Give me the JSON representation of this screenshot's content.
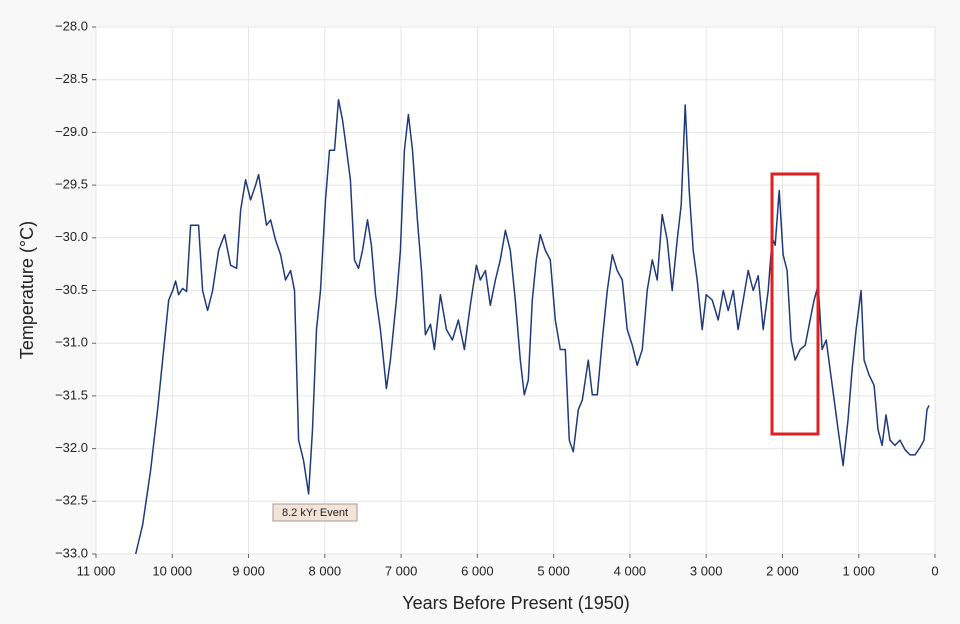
{
  "chart_data": {
    "type": "line",
    "x_label": "Years Before Present (1950)",
    "y_label": "Temperature (°C)",
    "annotation": "8.2 kYr Event",
    "color": "#1f3a7a",
    "grid": true,
    "xlim": [
      11000,
      0
    ],
    "ylim": [
      -33,
      -28
    ],
    "xticks": [
      {
        "value": 11000,
        "label": "11 000"
      },
      {
        "value": 10000,
        "label": "10 000"
      },
      {
        "value": 9000,
        "label": "9 000"
      },
      {
        "value": 8000,
        "label": "8 000"
      },
      {
        "value": 7000,
        "label": "7 000"
      },
      {
        "value": 6000,
        "label": "6 000"
      },
      {
        "value": 5000,
        "label": "5 000"
      },
      {
        "value": 4000,
        "label": "4 000"
      },
      {
        "value": 3000,
        "label": "3 000"
      },
      {
        "value": 2000,
        "label": "2 000"
      },
      {
        "value": 1000,
        "label": "1 000"
      },
      0
    ],
    "yticks": [
      {
        "value": -28,
        "label": "−28.0"
      },
      {
        "value": -28.5,
        "label": "−28.5"
      },
      {
        "value": -29,
        "label": "−29.0"
      },
      {
        "value": -29.5,
        "label": "−29.5"
      },
      {
        "value": -30,
        "label": "−30.0"
      },
      {
        "value": -30.5,
        "label": "−30.5"
      },
      {
        "value": -31,
        "label": "−31.0"
      },
      {
        "value": -31.5,
        "label": "−31.5"
      },
      {
        "value": -32,
        "label": "−32.0"
      },
      {
        "value": -32.5,
        "label": "−32.5"
      },
      {
        "value": -33,
        "label": "−33.0"
      }
    ],
    "x": [
      10480,
      10388,
      10283,
      10192,
      10113,
      10047,
      9995,
      9956,
      9917,
      9864,
      9812,
      9760,
      9707,
      9655,
      9602,
      9537,
      9471,
      9393,
      9314,
      9235,
      9157,
      9104,
      9039,
      8973,
      8908,
      8868,
      8816,
      8764,
      8711,
      8646,
      8580,
      8515,
      8449,
      8397,
      8344,
      8279,
      8213,
      8161,
      8109,
      8056,
      7991,
      7938,
      7873,
      7820,
      7768,
      7715,
      7664,
      7611,
      7559,
      7506,
      7441,
      7389,
      7336,
      7271,
      7192,
      7140,
      7061,
      7009,
      6956,
      6904,
      6851,
      6786,
      6733,
      6681,
      6615,
      6563,
      6484,
      6406,
      6327,
      6249,
      6170,
      6092,
      6013,
      5961,
      5895,
      5830,
      5764,
      5699,
      5633,
      5568,
      5502,
      5437,
      5384,
      5332,
      5280,
      5227,
      5175,
      5109,
      5044,
      4978,
      4913,
      4847,
      4795,
      4742,
      4677,
      4624,
      4546,
      4493,
      4428,
      4362,
      4297,
      4231,
      4166,
      4100,
      4035,
      3969,
      3904,
      3838,
      3773,
      3707,
      3642,
      3576,
      3511,
      3445,
      3380,
      3327,
      3275,
      3222,
      3170,
      3118,
      3052,
      3000,
      2921,
      2842,
      2776,
      2711,
      2645,
      2581,
      2515,
      2449,
      2384,
      2318,
      2253,
      2187,
      2135,
      2095,
      2043,
      1991,
      1939,
      1886,
      1834,
      1768,
      1702,
      1637,
      1585,
      1532,
      1480,
      1427,
      1375,
      1322,
      1270,
      1205,
      1140,
      1087,
      1035,
      969,
      930,
      865,
      799,
      747,
      694,
      642,
      590,
      524,
      459,
      393,
      327,
      262,
      196,
      144,
      105,
      79
    ],
    "values": [
      -33.0,
      -32.72,
      -32.2,
      -31.63,
      -31.06,
      -30.59,
      -30.5,
      -30.41,
      -30.54,
      -30.48,
      -30.51,
      -29.88,
      -29.88,
      -29.88,
      -30.5,
      -30.69,
      -30.5,
      -30.12,
      -29.97,
      -30.26,
      -30.29,
      -29.74,
      -29.45,
      -29.64,
      -29.5,
      -29.4,
      -29.64,
      -29.88,
      -29.83,
      -30.02,
      -30.16,
      -30.4,
      -30.31,
      -30.5,
      -31.92,
      -32.11,
      -32.43,
      -31.82,
      -30.87,
      -30.5,
      -29.64,
      -29.17,
      -29.17,
      -28.69,
      -28.88,
      -29.17,
      -29.45,
      -30.21,
      -30.29,
      -30.12,
      -29.83,
      -30.07,
      -30.54,
      -30.87,
      -31.43,
      -31.16,
      -30.59,
      -30.12,
      -29.17,
      -28.83,
      -29.17,
      -29.83,
      -30.31,
      -30.92,
      -30.82,
      -31.06,
      -30.54,
      -30.87,
      -30.97,
      -30.78,
      -31.06,
      -30.64,
      -30.26,
      -30.4,
      -30.31,
      -30.64,
      -30.4,
      -30.21,
      -29.93,
      -30.12,
      -30.59,
      -31.16,
      -31.49,
      -31.35,
      -30.59,
      -30.21,
      -29.97,
      -30.12,
      -30.21,
      -30.78,
      -31.06,
      -31.06,
      -31.92,
      -32.03,
      -31.63,
      -31.54,
      -31.16,
      -31.49,
      -31.49,
      -30.97,
      -30.5,
      -30.16,
      -30.31,
      -30.4,
      -30.87,
      -31.02,
      -31.21,
      -31.06,
      -30.5,
      -30.21,
      -30.4,
      -29.78,
      -30.02,
      -30.5,
      -30.02,
      -29.69,
      -28.74,
      -29.55,
      -30.12,
      -30.4,
      -30.87,
      -30.54,
      -30.59,
      -30.78,
      -30.5,
      -30.69,
      -30.5,
      -30.87,
      -30.59,
      -30.31,
      -30.5,
      -30.36,
      -30.87,
      -30.5,
      -30.0,
      -30.07,
      -29.55,
      -30.16,
      -30.31,
      -30.97,
      -31.16,
      -31.06,
      -31.02,
      -30.78,
      -30.59,
      -30.45,
      -31.06,
      -30.97,
      -31.25,
      -31.54,
      -31.82,
      -32.16,
      -31.73,
      -31.25,
      -30.87,
      -30.5,
      -31.16,
      -31.3,
      -31.4,
      -31.82,
      -31.97,
      -31.68,
      -31.92,
      -31.97,
      -31.92,
      -32.01,
      -32.06,
      -32.06,
      -31.99,
      -31.92,
      -31.63,
      -31.59
    ]
  }
}
